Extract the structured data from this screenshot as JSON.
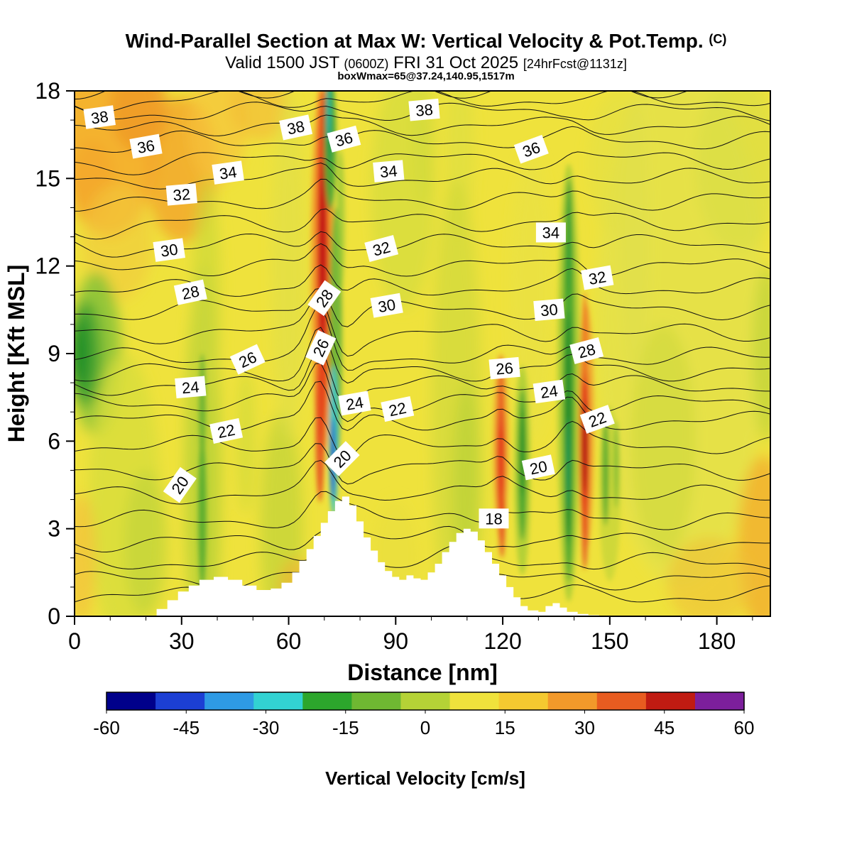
{
  "header": {
    "title": "Wind-Parallel Section at Max W: Vertical Velocity & Pot.Temp.",
    "title_unit": "(C)",
    "valid_prefix": "Valid 1500 JST",
    "valid_utc": "(0600Z)",
    "valid_date": "FRI 31 Oct 2025",
    "fcst_info": "[24hrFcst@1131z]",
    "boxwmax": "boxWmax=65@37.24,140.95,1517m"
  },
  "chart_data": {
    "type": "heatmap",
    "title": "Wind-Parallel Section at Max W: Vertical Velocity & Pot.Temp. (C)",
    "subtitle": "Valid 1500 JST (0600Z) FRI 31 Oct 2025 [24hrFcst@1131z]",
    "annotation": "boxWmax=65@37.24,140.95,1517m",
    "xlabel": "Distance [nm]",
    "ylabel": "Height [Kft MSL]",
    "xlim": [
      0,
      195
    ],
    "ylim": [
      0,
      18
    ],
    "x_ticks": [
      0,
      30,
      60,
      90,
      120,
      150,
      180
    ],
    "x_minor_step": 10,
    "y_ticks": [
      0,
      3,
      6,
      9,
      12,
      15,
      18
    ],
    "y_minor_step": 1,
    "background_color": "#efe23c",
    "shading": "Vertical velocity fill (cm/s): mostly weak positive (yellow 0-15) with orange patches aloft upper-left; narrow strong updraft (red 30-60) near x=70 from 4-18 kft flanked by strong downdraft (cyan/blue -60 to -30) near x=72 at 4-9 kft; downdraft streaks (green) near x=36, 73, 126, 139; updraft streaks (red/orange) near x=120 and x=143; dark green downdraft pocket at left edge near 9 kft",
    "contours": {
      "field": "Potential temperature (C)",
      "interval": 1,
      "labeled_values": [
        18,
        20,
        22,
        24,
        26,
        28,
        30,
        32,
        34,
        36,
        38
      ],
      "level_heights_kft": {
        "14": 0.7,
        "15": 1.25,
        "16": 1.85,
        "17": 2.55,
        "18": 3.3,
        "19": 4.15,
        "20": 5.0,
        "21": 5.85,
        "22": 6.7,
        "23": 7.3,
        "24": 7.9,
        "25": 8.4,
        "26": 8.9,
        "27": 9.7,
        "28": 10.5,
        "29": 11.25,
        "30": 12.0,
        "31": 12.75,
        "32": 13.5,
        "33": 14.25,
        "34": 15.0,
        "35": 15.65,
        "36": 16.3,
        "37": 16.8,
        "38": 17.3,
        "39": 17.7,
        "40": 18.1
      },
      "labels": [
        [
          38,
          7,
          17.1,
          -8
        ],
        [
          36,
          20,
          16.1,
          -10
        ],
        [
          34,
          43,
          15.2,
          -8
        ],
        [
          32,
          30,
          14.45,
          -5
        ],
        [
          38,
          62,
          16.75,
          -12
        ],
        [
          36,
          75.5,
          16.35,
          -15
        ],
        [
          34,
          88,
          15.25,
          -5
        ],
        [
          38,
          98,
          17.35,
          -5
        ],
        [
          36,
          128,
          16.0,
          -20
        ],
        [
          34,
          133.5,
          13.15,
          0
        ],
        [
          32,
          146.5,
          11.6,
          -10
        ],
        [
          30,
          26.5,
          12.55,
          -8
        ],
        [
          28,
          32.5,
          11.1,
          -12
        ],
        [
          32,
          86,
          12.6,
          -15
        ],
        [
          30,
          87.5,
          10.65,
          -10
        ],
        [
          28,
          70,
          10.9,
          -55
        ],
        [
          26,
          69,
          9.2,
          -65
        ],
        [
          26,
          48.5,
          8.8,
          -25
        ],
        [
          24,
          32.5,
          7.85,
          -5
        ],
        [
          30,
          133,
          10.5,
          -5
        ],
        [
          28,
          143.5,
          9.1,
          -15
        ],
        [
          26,
          120.5,
          8.5,
          -5
        ],
        [
          24,
          133,
          7.7,
          -8
        ],
        [
          22,
          42.5,
          6.35,
          -12
        ],
        [
          24,
          78.5,
          7.3,
          -10
        ],
        [
          22,
          90.5,
          7.1,
          -12
        ],
        [
          22,
          146.5,
          6.75,
          -20
        ],
        [
          20,
          75,
          5.4,
          -45
        ],
        [
          20,
          130,
          5.1,
          -12
        ],
        [
          20,
          29.5,
          4.5,
          -55
        ],
        [
          18,
          117.5,
          3.35,
          0
        ]
      ]
    },
    "terrain_profile_kft": [
      [
        20,
        0
      ],
      [
        23,
        0.25
      ],
      [
        26,
        0.55
      ],
      [
        29,
        0.85
      ],
      [
        32,
        1.05
      ],
      [
        35,
        1.25
      ],
      [
        39,
        1.35
      ],
      [
        43,
        1.25
      ],
      [
        47,
        1.05
      ],
      [
        51,
        0.9
      ],
      [
        55,
        0.95
      ],
      [
        58,
        1.15
      ],
      [
        61,
        1.5
      ],
      [
        63,
        1.9
      ],
      [
        65,
        2.3
      ],
      [
        67,
        2.75
      ],
      [
        69,
        3.2
      ],
      [
        71,
        3.6
      ],
      [
        73,
        3.95
      ],
      [
        75,
        4.1
      ],
      [
        77,
        3.8
      ],
      [
        79,
        3.25
      ],
      [
        81,
        2.7
      ],
      [
        83,
        2.25
      ],
      [
        85,
        1.85
      ],
      [
        87,
        1.55
      ],
      [
        89,
        1.35
      ],
      [
        91,
        1.25
      ],
      [
        93,
        1.4
      ],
      [
        95,
        1.3
      ],
      [
        97,
        1.25
      ],
      [
        99,
        1.5
      ],
      [
        101,
        1.8
      ],
      [
        103,
        2.2
      ],
      [
        105,
        2.55
      ],
      [
        107,
        2.85
      ],
      [
        109,
        3.0
      ],
      [
        111,
        2.9
      ],
      [
        113,
        2.6
      ],
      [
        115,
        2.2
      ],
      [
        117,
        1.8
      ],
      [
        119,
        1.4
      ],
      [
        121,
        1.0
      ],
      [
        123,
        0.65
      ],
      [
        125,
        0.35
      ],
      [
        127,
        0.2
      ],
      [
        130,
        0.15
      ],
      [
        132,
        0.35
      ],
      [
        134,
        0.45
      ],
      [
        136,
        0.3
      ],
      [
        138,
        0.15
      ],
      [
        141,
        0.08
      ],
      [
        144,
        0.04
      ],
      [
        147,
        0
      ]
    ],
    "fill_features": [
      [
        10,
        16.5,
        14,
        3.5,
        "#f5ae2e",
        0.9,
        "b"
      ],
      [
        30,
        15.3,
        10,
        2.5,
        "#f3a52c",
        0.8,
        "b"
      ],
      [
        18,
        17.4,
        8,
        1.5,
        "#ef9c28",
        0.9,
        "b"
      ],
      [
        5,
        14.8,
        6,
        1.5,
        "#f3a52c",
        0.7,
        "b"
      ],
      [
        40,
        16.8,
        8,
        2,
        "#f6c33a",
        0.7,
        "b"
      ],
      [
        52,
        17.5,
        8,
        1.2,
        "#f4b835",
        0.6,
        "b"
      ],
      [
        12,
        12.8,
        10,
        2,
        "#f2c93c",
        0.6,
        "b"
      ],
      [
        6,
        9,
        7,
        2.8,
        "#8cc336",
        0.9,
        "b"
      ],
      [
        3,
        9,
        4.5,
        1.8,
        "#46a432",
        0.95,
        "b"
      ],
      [
        1.5,
        9,
        2.5,
        1.2,
        "#1d8c26",
        0.95,
        "b"
      ],
      [
        14,
        4,
        10,
        5,
        "#d8dd3c",
        0.8,
        "b"
      ],
      [
        20,
        2.5,
        6,
        2.5,
        "#c2d438",
        0.7,
        "b"
      ],
      [
        36,
        5,
        5,
        7,
        "#b9d137",
        0.85,
        "b"
      ],
      [
        37,
        11,
        4,
        4,
        "#cdd839",
        0.7,
        "b"
      ],
      [
        48,
        6,
        2.5,
        2.5,
        "#ccd839",
        0.6,
        "b"
      ],
      [
        58,
        3,
        6,
        4,
        "#c6d538",
        0.8,
        "b"
      ],
      [
        60,
        12,
        5,
        6,
        "#dfe04a",
        0.6,
        "b"
      ],
      [
        92,
        14.5,
        9,
        4,
        "#d5dc3f",
        0.75,
        "b"
      ],
      [
        98,
        16.5,
        3,
        2.5,
        "#cfd93c",
        0.6,
        "b"
      ],
      [
        108,
        16,
        4,
        3,
        "#d8dd40",
        0.5,
        "b"
      ],
      [
        107,
        7,
        7,
        8,
        "#d0d93b",
        0.7,
        "b"
      ],
      [
        110,
        4.5,
        4,
        3.5,
        "#b9d137",
        0.7,
        "b"
      ],
      [
        128,
        11,
        6,
        5,
        "#e8e246",
        0.5,
        "b"
      ],
      [
        170,
        10,
        24,
        9,
        "#e2e14c",
        0.7,
        "b"
      ],
      [
        165,
        6,
        9,
        4,
        "#cfd93c",
        0.6,
        "b"
      ],
      [
        186,
        15.5,
        12,
        3,
        "#d8dd44",
        0.6,
        "b"
      ],
      [
        194,
        9,
        4,
        3,
        "#bdd339",
        0.7,
        "b"
      ],
      [
        157,
        13,
        4,
        5,
        "#dfe04a",
        0.55,
        "b"
      ],
      [
        193,
        2.5,
        7,
        3,
        "#f2ab2f",
        0.75,
        "b"
      ],
      [
        178,
        1.2,
        12,
        1.5,
        "#f0c236",
        0.6,
        "b"
      ],
      [
        62,
        0.8,
        5,
        1.2,
        "#f3b133",
        0.6,
        "b"
      ],
      [
        2,
        2,
        4,
        2.2,
        "#f4c13a",
        0.7,
        "b"
      ],
      [
        90,
        2,
        6,
        2,
        "#e8de3e",
        0.5,
        "b"
      ],
      [
        152,
        15.5,
        8,
        2.5,
        "#e2e048",
        0.5,
        "b"
      ],
      [
        69.5,
        12,
        3.2,
        6.5,
        "#f2952b",
        0.85,
        "s"
      ],
      [
        69.5,
        12,
        1.7,
        6,
        "#e33b1c",
        0.95,
        "s"
      ],
      [
        69.5,
        12.5,
        0.85,
        3.2,
        "#bb1712",
        0.95,
        "s"
      ],
      [
        68.8,
        6.5,
        1.3,
        2.6,
        "#e5481f",
        0.85,
        "s"
      ],
      [
        73.2,
        9.5,
        1.8,
        4.5,
        "#6ab336",
        0.9,
        "s"
      ],
      [
        72.6,
        6,
        1.3,
        2.6,
        "#3cc4c4",
        0.95,
        "s"
      ],
      [
        72.4,
        5.4,
        0.65,
        1.4,
        "#2f55cc",
        0.95,
        "s"
      ],
      [
        71.6,
        16.3,
        1.7,
        2.4,
        "#49a835",
        0.95,
        "s"
      ],
      [
        71.3,
        17,
        0.8,
        1.6,
        "#1d9a50",
        0.9,
        "s"
      ],
      [
        71.2,
        17.3,
        0.45,
        1,
        "#35c0bd",
        0.85,
        "s"
      ],
      [
        74.5,
        13.5,
        1.2,
        2.5,
        "#8cc336",
        0.7,
        "s"
      ],
      [
        35.8,
        3.5,
        1.1,
        2.6,
        "#4aa72f",
        0.85,
        "s"
      ],
      [
        35.8,
        7.2,
        0.9,
        1.8,
        "#57ab31",
        0.8,
        "s"
      ],
      [
        119.5,
        5.8,
        2.2,
        3.2,
        "#f0972c",
        0.7,
        "s"
      ],
      [
        119.5,
        5.5,
        1.15,
        2.3,
        "#e33b1c",
        0.95,
        "s"
      ],
      [
        119.5,
        7.6,
        0.8,
        1.3,
        "#e85a22",
        0.85,
        "s"
      ],
      [
        119.8,
        3.2,
        0.9,
        1.2,
        "#e5481f",
        0.8,
        "s"
      ],
      [
        125.5,
        5,
        2.3,
        3.6,
        "#a5cc36",
        0.8,
        "s"
      ],
      [
        125.5,
        5.2,
        1.25,
        2.6,
        "#4aa72f",
        0.95,
        "s"
      ],
      [
        125.5,
        5.6,
        0.6,
        1.5,
        "#2b8f28",
        0.9,
        "s"
      ],
      [
        138.5,
        8,
        3.2,
        7.5,
        "#a2cb36",
        0.8,
        "s"
      ],
      [
        138.5,
        8,
        1.7,
        6.8,
        "#4aa82f",
        0.95,
        "s"
      ],
      [
        138.4,
        6.5,
        0.85,
        4,
        "#25882a",
        0.9,
        "s"
      ],
      [
        138.3,
        5.2,
        0.5,
        1.6,
        "#1d9a60",
        0.8,
        "s"
      ],
      [
        138.6,
        13,
        0.9,
        2,
        "#3da035",
        0.8,
        "s"
      ],
      [
        143.4,
        6.5,
        2.2,
        4.2,
        "#f0952b",
        0.75,
        "s"
      ],
      [
        143,
        5.8,
        1.25,
        3,
        "#e33b1c",
        0.95,
        "s"
      ],
      [
        143,
        5.8,
        0.65,
        1.6,
        "#a81210",
        0.95,
        "s"
      ],
      [
        143,
        9.5,
        0.8,
        1.6,
        "#ee7124",
        0.8,
        "s"
      ],
      [
        143,
        2.8,
        0.8,
        1.2,
        "#e5481f",
        0.8,
        "s"
      ],
      [
        150,
        4.2,
        3,
        3,
        "#c2d437",
        0.7,
        "s"
      ],
      [
        148.8,
        5,
        0.95,
        1.9,
        "#5aab31",
        0.9,
        "s"
      ],
      [
        151.8,
        5.2,
        0.7,
        1.5,
        "#7cbb33",
        0.85,
        "s"
      ]
    ],
    "colorbar": {
      "label": "Vertical Velocity [cm/s]",
      "ticks": [
        -60,
        -45,
        -30,
        -15,
        0,
        15,
        30,
        45,
        60
      ],
      "cell_colors": [
        "#00008b",
        "#1c3fd4",
        "#2e9ae4",
        "#32d2d2",
        "#2ca62c",
        "#6fb832",
        "#b5d236",
        "#efe23c",
        "#f4c930",
        "#f2992a",
        "#e85c20",
        "#c01b12",
        "#7c1f9c"
      ]
    }
  }
}
